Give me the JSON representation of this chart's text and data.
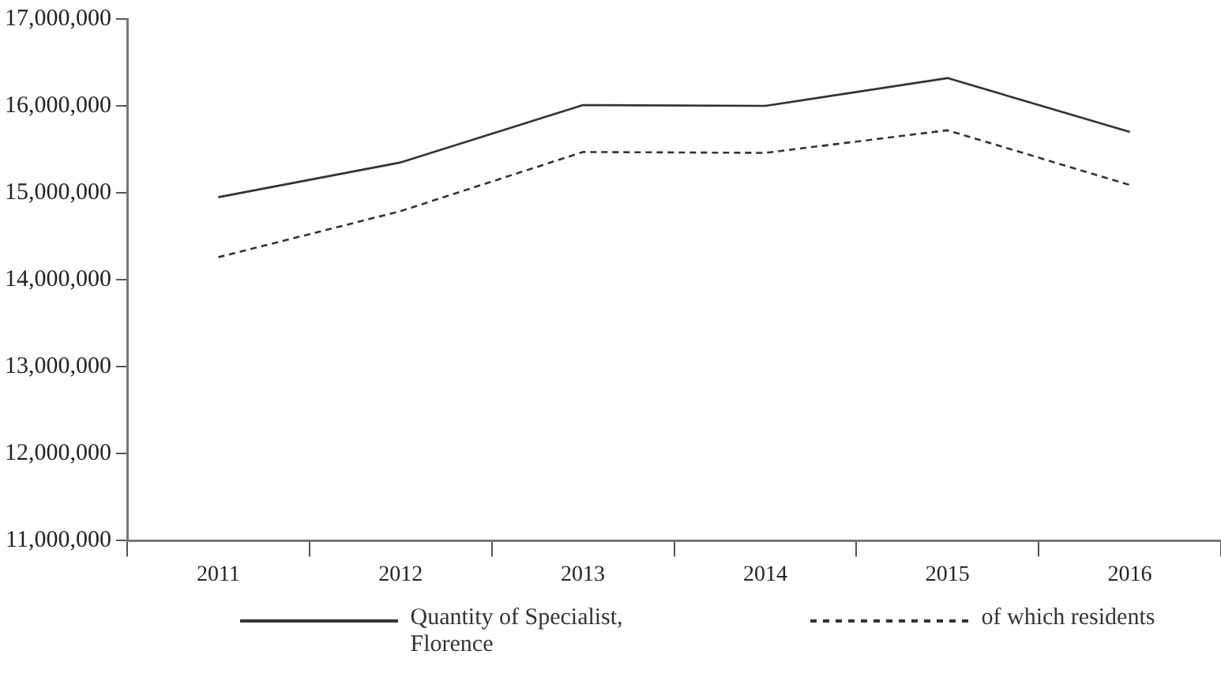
{
  "chart_data": {
    "type": "line",
    "categories": [
      "2011",
      "2012",
      "2013",
      "2014",
      "2015",
      "2016"
    ],
    "series": [
      {
        "name": "Quantity of Specialist, Florence",
        "color": "#333333",
        "line_style": "solid",
        "values": [
          14950000,
          15350000,
          16010000,
          16000000,
          16320000,
          15700000
        ]
      },
      {
        "name": "of which residents",
        "color": "#333333",
        "line_style": "dashed",
        "values": [
          14260000,
          14790000,
          15470000,
          15460000,
          15720000,
          15090000
        ]
      }
    ],
    "ylim": [
      11000000,
      17000000
    ],
    "yticks": [
      {
        "value": 11000000,
        "label": "11,000,000"
      },
      {
        "value": 12000000,
        "label": "12,000,000"
      },
      {
        "value": 13000000,
        "label": "13,000,000"
      },
      {
        "value": 14000000,
        "label": "14,000,000"
      },
      {
        "value": 15000000,
        "label": "15,000,000"
      },
      {
        "value": 16000000,
        "label": "16,000,000"
      },
      {
        "value": 17000000,
        "label": "17,000,000"
      }
    ],
    "grid": false,
    "legend": "bottom",
    "marker": "none"
  }
}
